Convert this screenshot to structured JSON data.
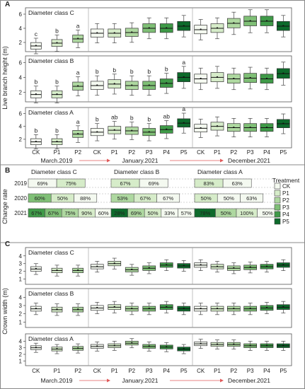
{
  "chart_data": [
    {
      "panel": "A",
      "type": "box",
      "ylabel": "Live branch height (m)",
      "yticks": [
        2,
        4,
        6
      ],
      "ylim": [
        1,
        6.6
      ],
      "x": [
        "CK",
        "P1",
        "P2",
        "CK",
        "P1",
        "P2",
        "P3",
        "P4",
        "P5",
        "CK",
        "P1",
        "P2",
        "P3",
        "P4",
        "P5"
      ],
      "periods": [
        "March.2019",
        "January.2021",
        "December.2021"
      ],
      "rows": [
        {
          "label": "Diameter class C",
          "letters": [
            "c",
            "b",
            "a",
            "",
            "",
            "",
            "",
            "",
            "",
            "",
            "",
            "",
            "",
            "",
            ""
          ],
          "medians": [
            1.5,
            1.9,
            2.5,
            3.3,
            3.3,
            3.4,
            4.0,
            4.0,
            4.3,
            3.8,
            4.0,
            4.7,
            5.0,
            5.0,
            4.3
          ]
        },
        {
          "label": "Diameter class B",
          "letters": [
            "b",
            "b",
            "a",
            "b",
            "b",
            "b",
            "b",
            "b",
            "a",
            "",
            "",
            "",
            "",
            "",
            ""
          ],
          "medians": [
            1.7,
            1.7,
            2.8,
            2.9,
            3.1,
            2.9,
            2.9,
            3.2,
            4.0,
            3.8,
            4.0,
            3.8,
            3.9,
            3.8,
            4.5
          ]
        },
        {
          "label": "Diameter class A",
          "letters": [
            "b",
            "b",
            "a",
            "b",
            "ab",
            "b",
            "b",
            "ab",
            "a",
            "",
            "",
            "",
            "",
            "",
            ""
          ],
          "medians": [
            1.6,
            1.6,
            2.8,
            3.1,
            3.4,
            3.3,
            3.1,
            3.5,
            4.5,
            3.7,
            4.0,
            3.8,
            3.8,
            3.8,
            4.4
          ]
        }
      ]
    },
    {
      "panel": "B",
      "type": "stacked-bar",
      "ylabel": "Change rate",
      "years": [
        "2019",
        "2020",
        "2021"
      ],
      "legend_title": "Treatment",
      "legend": [
        "CK",
        "P1",
        "P2",
        "P3",
        "P4",
        "P5"
      ],
      "colors": [
        "#f4f9f0",
        "#d6ecc9",
        "#aed8a0",
        "#7fbf76",
        "#3f9a48",
        "#0d6a2b"
      ],
      "classes": [
        {
          "label": "Diameter class C",
          "bars": [
            {
              "year": "2019",
              "segments": [
                {
                  "t": "CK",
                  "v": "69%"
                },
                {
                  "t": "P1",
                  "v": "75%"
                }
              ]
            },
            {
              "year": "2020",
              "segments": [
                {
                  "t": "P3",
                  "v": "60%"
                },
                {
                  "t": "P1",
                  "v": "50%"
                },
                {
                  "t": "CK",
                  "v": "88%"
                }
              ]
            },
            {
              "year": "2021",
              "segments": [
                {
                  "t": "P4",
                  "v": "67%"
                },
                {
                  "t": "P3",
                  "v": "67%"
                },
                {
                  "t": "P2",
                  "v": "75%"
                },
                {
                  "t": "P1",
                  "v": "90%"
                },
                {
                  "t": "CK",
                  "v": "60%"
                }
              ]
            }
          ]
        },
        {
          "label": "Diameter class B",
          "bars": [
            {
              "year": "2019",
              "segments": [
                {
                  "t": "P1",
                  "v": "67%"
                },
                {
                  "t": "CK",
                  "v": "69%"
                }
              ]
            },
            {
              "year": "2020",
              "segments": [
                {
                  "t": "P2",
                  "v": "53%"
                },
                {
                  "t": "P1",
                  "v": "67%"
                },
                {
                  "t": "CK",
                  "v": "67%"
                }
              ]
            },
            {
              "year": "2021",
              "segments": [
                {
                  "t": "P5",
                  "v": "28%"
                },
                {
                  "t": "P2",
                  "v": "69%"
                },
                {
                  "t": "P1",
                  "v": "50%"
                },
                {
                  "t": "CK",
                  "v": "33%"
                },
                {
                  "t": "CK",
                  "v": "57%"
                }
              ]
            }
          ]
        },
        {
          "label": "Diameter class A",
          "bars": [
            {
              "year": "2019",
              "segments": [
                {
                  "t": "P1",
                  "v": "83%"
                },
                {
                  "t": "CK",
                  "v": "63%"
                }
              ]
            },
            {
              "year": "2020",
              "segments": [
                {
                  "t": "P1",
                  "v": "50%"
                },
                {
                  "t": "CK",
                  "v": "50%"
                },
                {
                  "t": "CK",
                  "v": "63%"
                }
              ]
            },
            {
              "year": "2021",
              "segments": [
                {
                  "t": "P5",
                  "v": "78%"
                },
                {
                  "t": "P2",
                  "v": "50%"
                },
                {
                  "t": "P1",
                  "v": "100%"
                },
                {
                  "t": "CK",
                  "v": "50%"
                }
              ]
            }
          ]
        }
      ]
    },
    {
      "panel": "C",
      "type": "box",
      "ylabel": "Crown width (m)",
      "yticks": [
        1,
        2,
        3,
        4
      ],
      "ylim": [
        0.6,
        4.8
      ],
      "x": [
        "CK",
        "P1",
        "P2",
        "CK",
        "P1",
        "P2",
        "P3",
        "P4",
        "P5",
        "CK",
        "P1",
        "P2",
        "P3",
        "P4",
        "P5"
      ],
      "periods": [
        "March.2019",
        "January.2021",
        "December.2021"
      ],
      "rows": [
        {
          "label": "Diameter class C",
          "medians": [
            2.3,
            2.1,
            2.1,
            2.6,
            3.0,
            2.2,
            2.4,
            2.8,
            2.7,
            2.8,
            2.6,
            2.4,
            2.5,
            2.6,
            2.8
          ]
        },
        {
          "label": "Diameter class B",
          "medians": [
            2.6,
            2.5,
            2.5,
            2.7,
            2.8,
            2.6,
            2.6,
            2.8,
            2.6,
            2.6,
            2.6,
            2.6,
            2.6,
            2.7,
            2.8
          ]
        },
        {
          "label": "Diameter class A",
          "medians": [
            3.0,
            2.8,
            2.9,
            3.2,
            3.3,
            3.7,
            3.2,
            3.1,
            2.8,
            3.6,
            3.5,
            3.5,
            3.3,
            3.3,
            3.3
          ]
        }
      ]
    }
  ]
}
